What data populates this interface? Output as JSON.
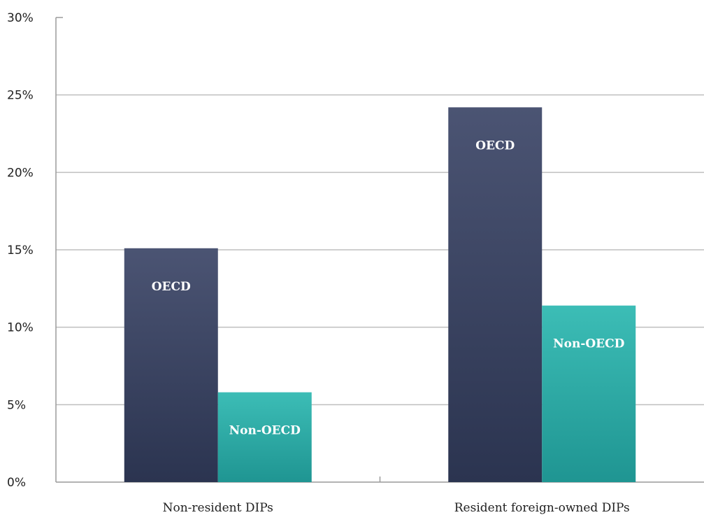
{
  "chart_data": {
    "type": "bar",
    "title": "",
    "xlabel": "",
    "ylabel": "",
    "categories": [
      "Non-resident DIPs",
      "Resident foreign-owned DIPs"
    ],
    "series": [
      {
        "name": "OECD",
        "values": [
          15.1,
          24.2
        ],
        "color": "#3a4260"
      },
      {
        "name": "Non-OECD",
        "values": [
          5.8,
          11.4
        ],
        "color": "#26a9a4"
      }
    ],
    "ylim": [
      0,
      30
    ],
    "yticks": [
      0,
      5,
      10,
      15,
      20,
      25,
      30
    ],
    "ytick_labels": [
      "0%",
      "5%",
      "10%",
      "15%",
      "20%",
      "25%",
      "30%"
    ],
    "grid": "horizontal",
    "legend": "none; series names printed inside bars"
  }
}
